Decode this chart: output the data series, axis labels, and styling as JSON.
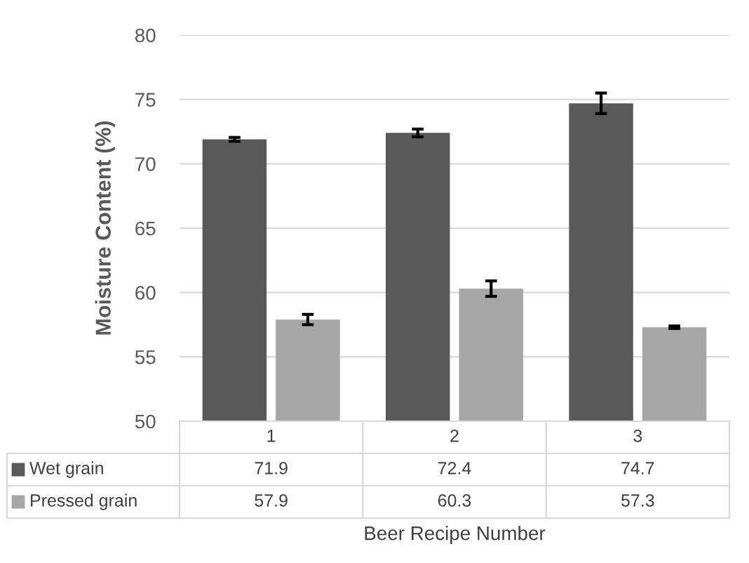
{
  "chart_data": {
    "type": "bar",
    "xlabel": "Beer Recipe Number",
    "ylabel": "Moisture Content (%)",
    "categories": [
      "1",
      "2",
      "3"
    ],
    "series": [
      {
        "name": "Wet grain",
        "color": "#595959",
        "values": [
          71.9,
          72.4,
          74.7
        ],
        "errors": [
          0.15,
          0.3,
          0.8
        ]
      },
      {
        "name": "Pressed grain",
        "color": "#a6a6a6",
        "values": [
          57.9,
          60.3,
          57.3
        ],
        "errors": [
          0.4,
          0.6,
          0.1
        ]
      }
    ],
    "ylim": [
      50,
      80
    ],
    "yticks": [
      50,
      55,
      60,
      65,
      70,
      75,
      80
    ],
    "grid": "y",
    "data_labels": true,
    "legend": "bottom left"
  }
}
